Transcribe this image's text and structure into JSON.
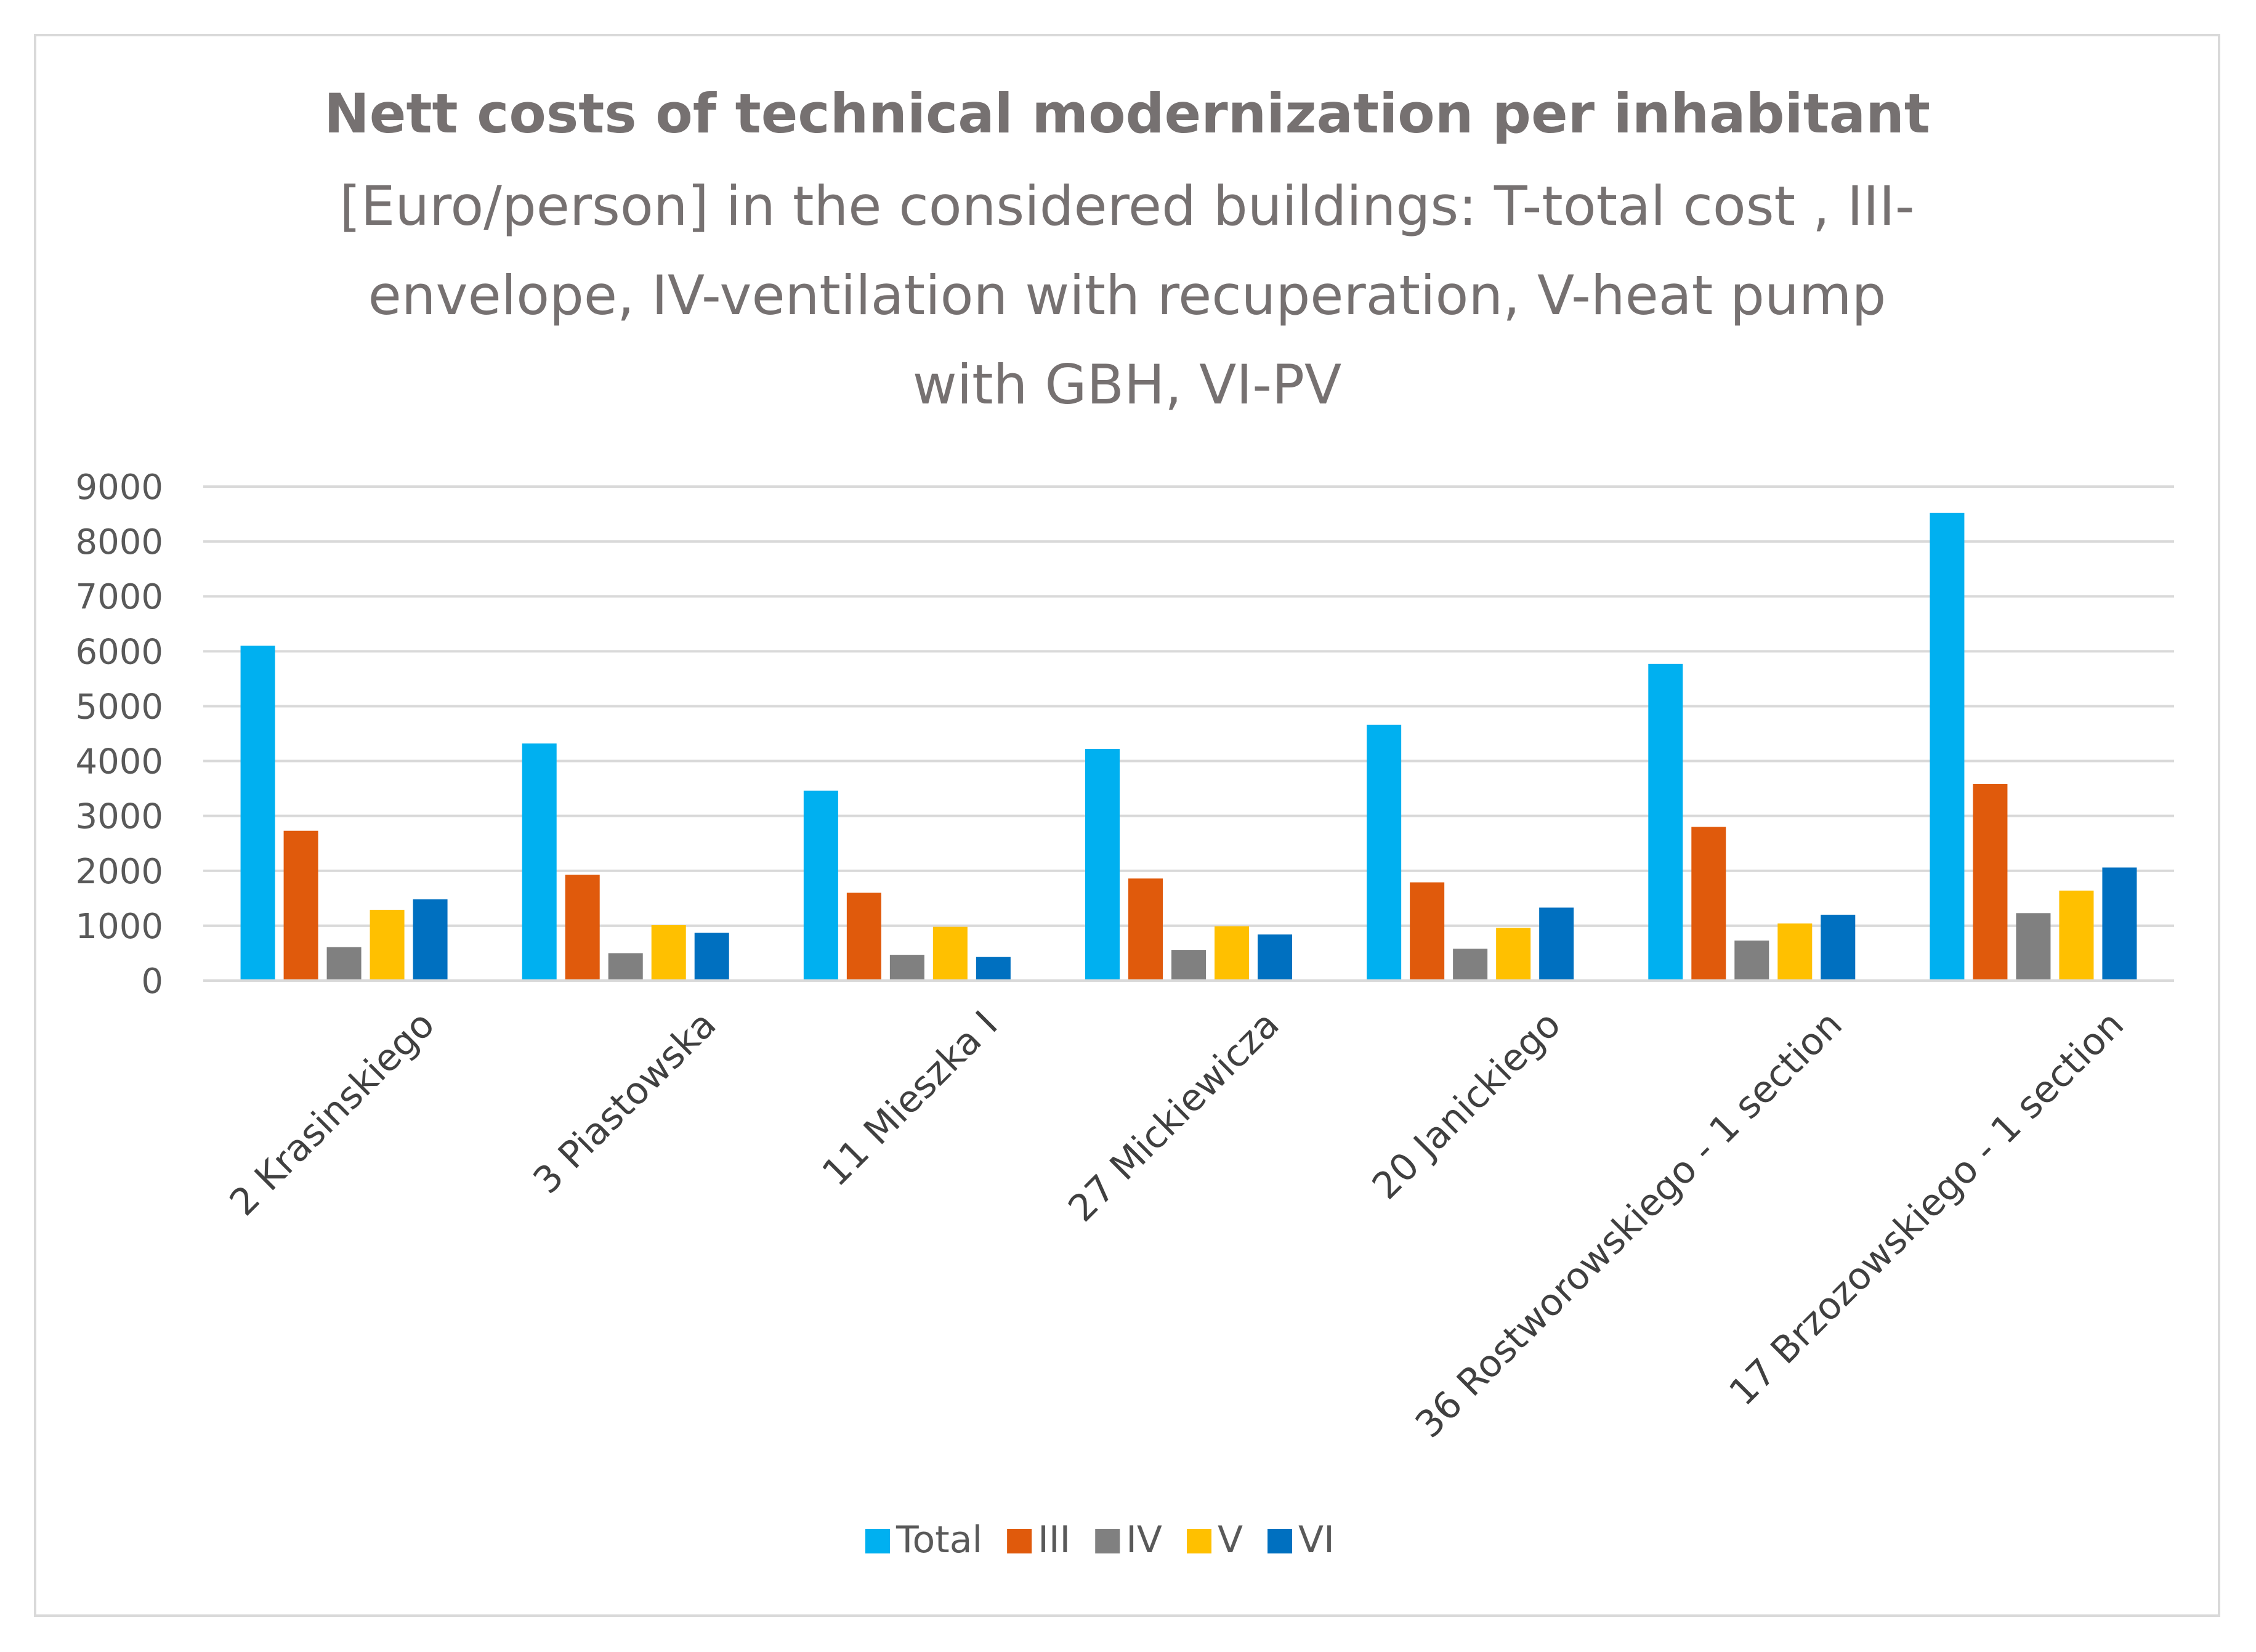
{
  "chart_data": {
    "type": "bar",
    "title": "Nett costs of  technical modernization  per inhabitant",
    "subtitle_lines": [
      "[Euro/person] in the considered buildings: T-total cost , III-",
      "envelope, IV-ventilation with recuperation, V-heat pump",
      "with GBH, VI-PV"
    ],
    "xlabel": "",
    "ylabel": "",
    "ylim": [
      0,
      9000
    ],
    "yticks": [
      0,
      1000,
      2000,
      3000,
      4000,
      5000,
      6000,
      7000,
      8000,
      9000
    ],
    "grid": true,
    "legend_position": "bottom",
    "categories": [
      "2 Krasinskiego",
      "3 Piastowska",
      "11 Mieszka I",
      "27 Mickiewicza",
      "20 Janickiego",
      "36 Rostworowskiego - 1 section",
      "17 Brzozowskiego - 1 section"
    ],
    "series": [
      {
        "name": "Total",
        "color": "#00b0f0",
        "values": [
          6100,
          4320,
          3460,
          4220,
          4660,
          5770,
          8520
        ]
      },
      {
        "name": "III",
        "color": "#e05a0c",
        "values": [
          2730,
          1930,
          1600,
          1860,
          1790,
          2800,
          3580
        ]
      },
      {
        "name": "IV",
        "color": "#808080",
        "values": [
          610,
          500,
          470,
          560,
          580,
          730,
          1230
        ]
      },
      {
        "name": "V",
        "color": "#ffc000",
        "values": [
          1290,
          1010,
          980,
          990,
          960,
          1040,
          1640
        ]
      },
      {
        "name": "VI",
        "color": "#0070c0",
        "values": [
          1480,
          870,
          430,
          840,
          1330,
          1200,
          2060
        ]
      }
    ]
  }
}
